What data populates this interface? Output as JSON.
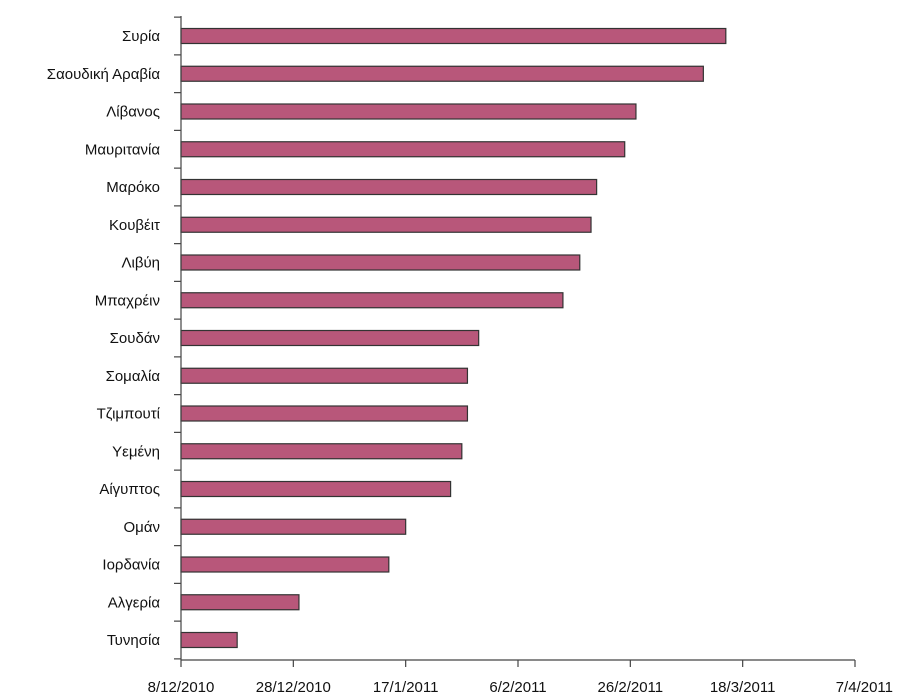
{
  "chart_data": {
    "type": "bar",
    "orientation": "horizontal",
    "title": "",
    "xlabel": "",
    "ylabel": "",
    "categories": [
      "Συρία",
      "Σαουδική Αραβία",
      "Λίβανος",
      "Μαυριτανία",
      "Μαρόκο",
      "Κουβέιτ",
      "Λιβύη",
      "Μπαχρέιν",
      "Σουδάν",
      "Σομαλία",
      "Τζιμπουτί",
      "Υεμένη",
      "Αίγυπτος",
      "Ομάν",
      "Ιορδανία",
      "Αλγερία",
      "Τυνησία"
    ],
    "values": [
      "2011-03-15",
      "2011-03-11",
      "2011-02-27",
      "2011-02-25",
      "2011-02-20",
      "2011-02-19",
      "2011-02-17",
      "2011-02-14",
      "2011-01-30",
      "2011-01-28",
      "2011-01-28",
      "2011-01-27",
      "2011-01-25",
      "2011-01-17",
      "2011-01-14",
      "2010-12-29",
      "2010-12-18"
    ],
    "xlim": [
      "2010-12-08",
      "2011-04-07"
    ],
    "xticks": [
      {
        "date": "2010-12-08",
        "label": "8/12/2010"
      },
      {
        "date": "2010-12-28",
        "label": "28/12/2010"
      },
      {
        "date": "2011-01-17",
        "label": "17/1/2011"
      },
      {
        "date": "2011-02-06",
        "label": "6/2/2011"
      },
      {
        "date": "2011-02-26",
        "label": "26/2/2011"
      },
      {
        "date": "2011-03-18",
        "label": "18/3/2011"
      },
      {
        "date": "2011-04-07",
        "label": "7/4/2011"
      }
    ],
    "bar_color": "#b8577a",
    "grid": false,
    "legend": "none"
  }
}
